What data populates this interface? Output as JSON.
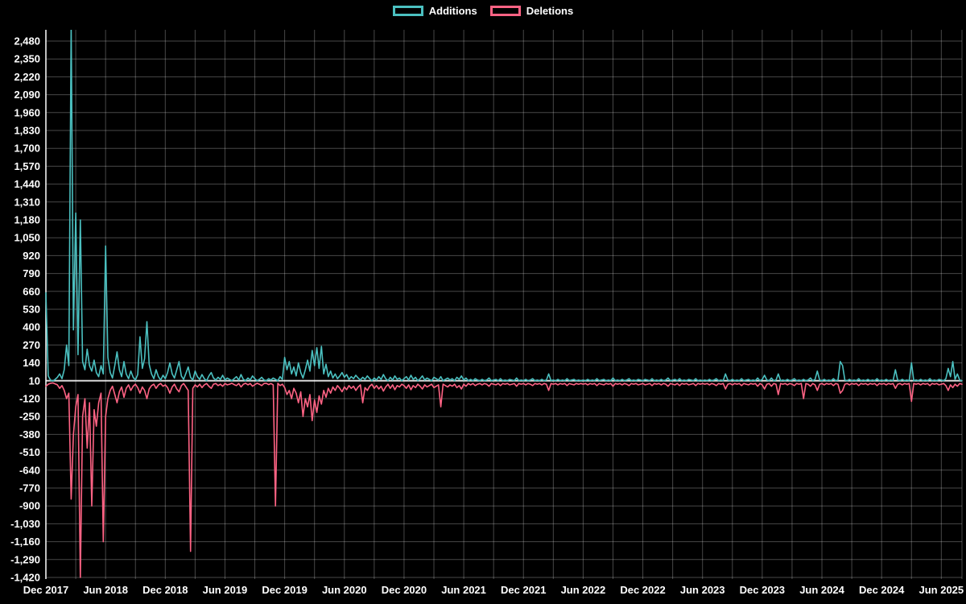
{
  "chart_data": {
    "type": "line",
    "title": "",
    "legend_position": "top",
    "grid": true,
    "background": "#000000",
    "grid_color": "rgba(255,255,255,0.28)",
    "baseline": 10,
    "baseline_color": "rgba(255,255,255,0.85)",
    "axis_color": "#ffffff",
    "text_color": "#ffffff",
    "n_points": 400,
    "points_per_label": 26,
    "minor_grid_every": 13,
    "x_tick_labels": [
      "Dec 2017",
      "Jun 2018",
      "Dec 2018",
      "Jun 2019",
      "Dec 2019",
      "Jun 2020",
      "Dec 2020",
      "Jun 2021",
      "Dec 2021",
      "Jun 2022",
      "Dec 2022",
      "Jun 2023",
      "Dec 2023",
      "Jun 2024",
      "Dec 2024",
      "Jun 2025"
    ],
    "y_ticks": [
      2480,
      2350,
      2220,
      2090,
      1960,
      1830,
      1700,
      1570,
      1440,
      1310,
      1180,
      1050,
      920,
      790,
      660,
      530,
      400,
      270,
      140,
      10,
      -120,
      -250,
      -380,
      -510,
      -640,
      -770,
      -900,
      -1030,
      -1160,
      -1290,
      -1420
    ],
    "ylim": [
      -1420,
      2544
    ],
    "series": [
      {
        "name": "Additions",
        "color": "#4bc0c0",
        "values": [
          650,
          45,
          15,
          8,
          20,
          35,
          60,
          25,
          90,
          270,
          120,
          2600,
          380,
          1230,
          200,
          1180,
          150,
          90,
          240,
          120,
          80,
          160,
          70,
          40,
          120,
          60,
          990,
          180,
          70,
          30,
          120,
          220,
          90,
          40,
          150,
          60,
          25,
          80,
          35,
          15,
          55,
          330,
          100,
          170,
          440,
          130,
          60,
          25,
          90,
          40,
          15,
          50,
          25,
          70,
          140,
          60,
          30,
          90,
          150,
          45,
          20,
          65,
          110,
          35,
          15,
          80,
          40,
          20,
          55,
          25,
          10,
          45,
          70,
          30,
          15,
          35,
          20,
          50,
          15,
          30,
          20,
          10,
          25,
          40,
          15,
          55,
          20,
          10,
          30,
          15,
          45,
          25,
          10,
          20,
          35,
          15,
          10,
          25,
          15,
          30,
          20,
          10,
          40,
          20,
          180,
          90,
          150,
          60,
          110,
          45,
          140,
          70,
          30,
          90,
          160,
          80,
          230,
          120,
          250,
          100,
          260,
          60,
          130,
          40,
          80,
          30,
          60,
          25,
          45,
          70,
          35,
          55,
          20,
          40,
          25,
          50,
          30,
          15,
          35,
          20,
          45,
          25,
          10,
          30,
          15,
          40,
          20,
          55,
          25,
          10,
          35,
          15,
          45,
          20,
          30,
          10,
          25,
          40,
          15,
          50,
          20,
          35,
          10,
          25,
          45,
          15,
          30,
          20,
          10,
          35,
          25,
          15,
          40,
          10,
          20,
          30,
          15,
          25,
          10,
          35,
          20,
          45,
          15,
          30,
          10,
          20,
          10,
          25,
          15,
          10,
          20,
          10,
          15,
          30,
          10,
          15,
          20,
          10,
          25,
          10,
          15,
          10,
          20,
          15,
          10,
          30,
          10,
          15,
          10,
          20,
          10,
          15,
          25,
          10,
          15,
          10,
          20,
          10,
          15,
          60,
          10,
          15,
          10,
          20,
          10,
          15,
          10,
          25,
          10,
          15,
          20,
          10,
          15,
          10,
          15,
          10,
          20,
          10,
          15,
          10,
          25,
          10,
          15,
          20,
          10,
          15,
          10,
          30,
          10,
          15,
          10,
          20,
          10,
          15,
          25,
          10,
          15,
          10,
          20,
          15,
          10,
          20,
          15,
          10,
          25,
          10,
          15,
          10,
          20,
          10,
          15,
          30,
          10,
          15,
          20,
          10,
          25,
          10,
          15,
          10,
          20,
          15,
          10,
          25,
          10,
          15,
          10,
          15,
          10,
          20,
          10,
          15,
          25,
          10,
          15,
          10,
          60,
          15,
          10,
          20,
          10,
          15,
          10,
          25,
          10,
          15,
          20,
          10,
          15,
          10,
          30,
          10,
          20,
          50,
          15,
          10,
          30,
          10,
          15,
          60,
          10,
          15,
          10,
          20,
          10,
          15,
          25,
          10,
          15,
          10,
          20,
          10,
          15,
          30,
          10,
          20,
          80,
          15,
          10,
          20,
          10,
          15,
          10,
          25,
          10,
          15,
          150,
          120,
          15,
          10,
          20,
          10,
          15,
          10,
          25,
          10,
          15,
          10,
          20,
          10,
          15,
          10,
          25,
          10,
          15,
          10,
          20,
          10,
          15,
          10,
          90,
          15,
          10,
          20,
          10,
          15,
          10,
          140,
          10,
          15,
          10,
          20,
          10,
          15,
          10,
          25,
          10,
          15,
          10,
          20,
          15,
          10,
          25,
          100,
          40,
          150,
          20,
          60,
          15,
          10
        ]
      },
      {
        "name": "Deletions",
        "color": "#ff6384",
        "values": [
          -30,
          -15,
          -8,
          -5,
          -12,
          -20,
          -45,
          -25,
          -60,
          -120,
          -80,
          -850,
          -380,
          -180,
          -90,
          -1420,
          -250,
          -120,
          -480,
          -150,
          -900,
          -200,
          -320,
          -150,
          -80,
          -1160,
          -250,
          -120,
          -60,
          -30,
          -90,
          -150,
          -70,
          -35,
          -110,
          -45,
          -20,
          -60,
          -30,
          -15,
          -40,
          -80,
          -35,
          -60,
          -120,
          -50,
          -25,
          -15,
          -45,
          -20,
          -10,
          -30,
          -20,
          -40,
          -80,
          -35,
          -15,
          -50,
          -70,
          -25,
          -10,
          -35,
          -60,
          -1230,
          -45,
          -20,
          -35,
          -15,
          -40,
          -20,
          -10,
          -30,
          -45,
          -15,
          -10,
          -25,
          -15,
          -30,
          -10,
          -20,
          -15,
          -8,
          -18,
          -25,
          -10,
          -35,
          -15,
          -8,
          -20,
          -10,
          -30,
          -18,
          -8,
          -15,
          -25,
          -10,
          -8,
          -18,
          -10,
          -20,
          -900,
          -8,
          -25,
          -15,
          -40,
          -90,
          -60,
          -120,
          -45,
          -80,
          -150,
          -70,
          -250,
          -120,
          -180,
          -90,
          -280,
          -130,
          -220,
          -100,
          -160,
          -60,
          -110,
          -45,
          -80,
          -35,
          -60,
          -25,
          -45,
          -70,
          -35,
          -55,
          -25,
          -45,
          -30,
          -60,
          -35,
          -20,
          -150,
          -40,
          -60,
          -30,
          -15,
          -45,
          -25,
          -50,
          -30,
          -65,
          -35,
          -15,
          -45,
          -20,
          -55,
          -25,
          -35,
          -15,
          -25,
          -45,
          -20,
          -55,
          -25,
          -40,
          -15,
          -30,
          -50,
          -20,
          -35,
          -25,
          -15,
          -40,
          -30,
          -20,
          -180,
          -15,
          -25,
          -35,
          -20,
          -30,
          -15,
          -40,
          -25,
          -50,
          -15,
          -30,
          -10,
          -20,
          -10,
          -25,
          -15,
          -10,
          -20,
          -10,
          -15,
          -30,
          -10,
          -15,
          -20,
          -10,
          -25,
          -10,
          -15,
          -10,
          -20,
          -15,
          -10,
          -30,
          -10,
          -15,
          -10,
          -20,
          -10,
          -15,
          -25,
          -10,
          -15,
          -10,
          -20,
          -10,
          -15,
          -60,
          -10,
          -15,
          -10,
          -20,
          -10,
          -15,
          -10,
          -25,
          -10,
          -15,
          -20,
          -10,
          -15,
          -10,
          -15,
          -10,
          -20,
          -10,
          -15,
          -10,
          -25,
          -10,
          -15,
          -20,
          -10,
          -15,
          -10,
          -30,
          -10,
          -15,
          -10,
          -20,
          -10,
          -15,
          -25,
          -10,
          -15,
          -10,
          -20,
          -15,
          -10,
          -20,
          -15,
          -10,
          -25,
          -10,
          -15,
          -10,
          -20,
          -10,
          -15,
          -30,
          -10,
          -15,
          -20,
          -10,
          -25,
          -10,
          -15,
          -10,
          -20,
          -15,
          -10,
          -25,
          -10,
          -15,
          -10,
          -15,
          -10,
          -20,
          -10,
          -15,
          -25,
          -10,
          -15,
          -10,
          -50,
          -15,
          -10,
          -20,
          -10,
          -15,
          -10,
          -25,
          -10,
          -15,
          -20,
          -10,
          -15,
          -10,
          -30,
          -10,
          -20,
          -50,
          -15,
          -10,
          -30,
          -10,
          -15,
          -90,
          -10,
          -15,
          -10,
          -20,
          -10,
          -15,
          -25,
          -10,
          -15,
          -10,
          -120,
          -10,
          -15,
          -30,
          -10,
          -20,
          -60,
          -15,
          -10,
          -20,
          -10,
          -15,
          -10,
          -25,
          -10,
          -15,
          -80,
          -60,
          -15,
          -10,
          -20,
          -10,
          -15,
          -10,
          -25,
          -10,
          -15,
          -10,
          -20,
          -10,
          -15,
          -10,
          -25,
          -10,
          -15,
          -10,
          -20,
          -10,
          -15,
          -10,
          -45,
          -15,
          -10,
          -20,
          -10,
          -15,
          -10,
          -140,
          -10,
          -15,
          -10,
          -20,
          -10,
          -15,
          -10,
          -25,
          -10,
          -15,
          -10,
          -20,
          -15,
          -10,
          -25,
          -60,
          -20,
          -40,
          -15,
          -30,
          -10,
          -15
        ]
      }
    ]
  }
}
